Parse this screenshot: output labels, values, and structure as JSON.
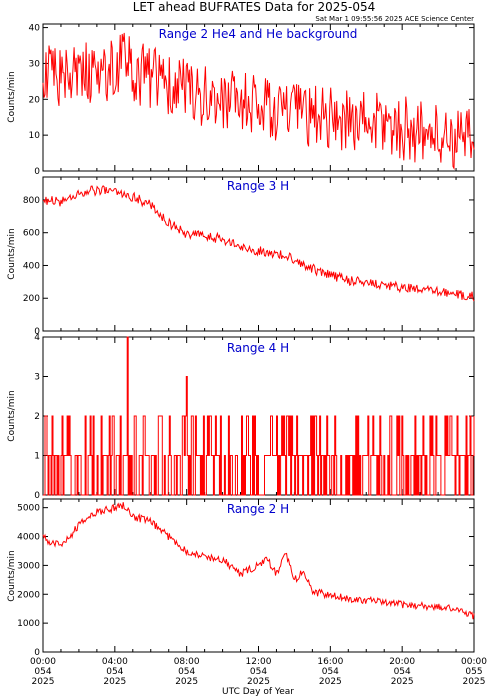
{
  "figure": {
    "title": "LET ahead BUFRATES Data for 2025-054",
    "timestamp": "Sat Mar  1 09:55:56 2025 ACE Science Center",
    "xlabel": "UTC Day of Year",
    "ylabel": "Counts/min",
    "trace_color": "#ff0000",
    "panel_title_color": "#0000cc"
  },
  "x_ticks": [
    {
      "time": "00:00",
      "doy": "054",
      "year": "2025",
      "hour": 0
    },
    {
      "time": "04:00",
      "doy": "054",
      "year": "2025",
      "hour": 4
    },
    {
      "time": "08:00",
      "doy": "054",
      "year": "2025",
      "hour": 8
    },
    {
      "time": "12:00",
      "doy": "054",
      "year": "2025",
      "hour": 12
    },
    {
      "time": "16:00",
      "doy": "054",
      "year": "2025",
      "hour": 16
    },
    {
      "time": "20:00",
      "doy": "054",
      "year": "2025",
      "hour": 20
    },
    {
      "time": "00:00",
      "doy": "055",
      "year": "2025",
      "hour": 24
    }
  ],
  "chart_data": [
    {
      "type": "line",
      "title": "Range 2 He4 and He background",
      "ylabel": "Counts/min",
      "xlim": [
        0,
        24
      ],
      "ylim": [
        0,
        41
      ],
      "yticks": [
        0,
        10,
        20,
        30,
        40
      ],
      "series": [
        {
          "x": [
            0,
            1,
            2,
            3,
            4,
            4.5,
            5,
            6,
            7,
            8,
            9,
            10,
            11,
            12,
            13,
            14,
            15,
            16,
            17,
            18,
            19,
            20,
            21,
            22,
            23,
            24
          ],
          "y": [
            26,
            27,
            28,
            27,
            29,
            30,
            28,
            26,
            24,
            22,
            21,
            20,
            19,
            18,
            17,
            16,
            15,
            15,
            14,
            14,
            13,
            12,
            11,
            10,
            9,
            8
          ],
          "noise": 9
        }
      ]
    },
    {
      "type": "line",
      "title": "Range 3 H",
      "ylabel": "Counts/min",
      "xlim": [
        0,
        24
      ],
      "ylim": [
        0,
        940
      ],
      "yticks": [
        0,
        200,
        400,
        600,
        800
      ],
      "series": [
        {
          "x": [
            0,
            1,
            2,
            3,
            4,
            5,
            6,
            7,
            8,
            9,
            10,
            11,
            12,
            13,
            14,
            15,
            16,
            17,
            18,
            19,
            20,
            21,
            22,
            23,
            24
          ],
          "y": [
            800,
            790,
            840,
            860,
            850,
            820,
            770,
            660,
            590,
            580,
            560,
            510,
            490,
            470,
            440,
            380,
            340,
            310,
            300,
            280,
            265,
            250,
            240,
            225,
            210
          ],
          "noise": 30
        }
      ]
    },
    {
      "type": "line",
      "title": "Range 4 H",
      "ylabel": "Counts/min",
      "xlim": [
        0,
        24
      ],
      "ylim": [
        0,
        4
      ],
      "yticks": [
        0,
        1,
        2,
        3,
        4
      ],
      "series": [
        {
          "discrete": true,
          "values": [
            0,
            1,
            2
          ],
          "spikes": [
            {
              "x": 4.7,
              "y": 4
            },
            {
              "x": 8.0,
              "y": 3
            }
          ]
        }
      ]
    },
    {
      "type": "line",
      "title": "Range 2 H",
      "ylabel": "Counts/min",
      "xlim": [
        0,
        24
      ],
      "ylim": [
        0,
        5300
      ],
      "yticks": [
        0,
        1000,
        2000,
        3000,
        4000,
        5000
      ],
      "series": [
        {
          "x": [
            0,
            0.5,
            1,
            1.5,
            2,
            3,
            4,
            4.5,
            5,
            6,
            7,
            8,
            9,
            10,
            11,
            12,
            12.5,
            13,
            13.5,
            14,
            14.5,
            15,
            16,
            17,
            18,
            19,
            20,
            21,
            22,
            23,
            24
          ],
          "y": [
            3950,
            3800,
            3650,
            4000,
            4400,
            4850,
            5000,
            5100,
            4700,
            4500,
            4000,
            3500,
            3300,
            3200,
            2700,
            3000,
            3200,
            2700,
            3400,
            2500,
            2800,
            2100,
            1950,
            1850,
            1800,
            1700,
            1650,
            1600,
            1550,
            1500,
            1250
          ],
          "noise": 130
        }
      ]
    }
  ]
}
